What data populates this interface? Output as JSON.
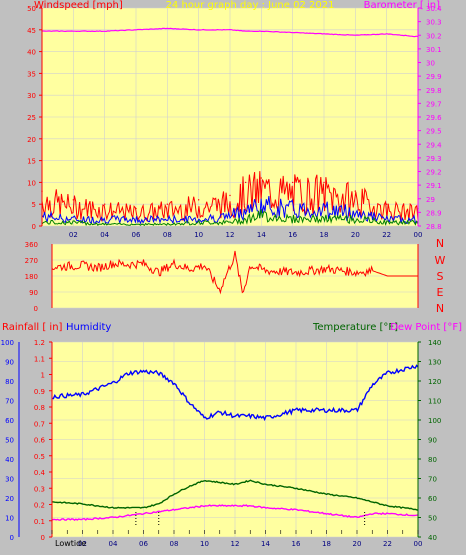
{
  "colors": {
    "background": "#c0c0c0",
    "plot_bg": "#ffffa0",
    "grid": "#d0d0d0",
    "wind": "#ff0000",
    "gust": "#0000ff",
    "avg": "#008000",
    "baro": "#ff00ff",
    "rain_axis": "#ff0000",
    "humidity": "#0000ff",
    "temperature": "#006400",
    "dewpoint": "#ff00ff",
    "title": "#ffff00",
    "direction": "#ff0000"
  },
  "chart_data": [
    {
      "type": "line",
      "id": "wind-baro",
      "title": "24 hour graph day : June 02 2021",
      "ylabel_left": "Windspeed [mph]",
      "ylabel_right": "Barometer [ in]",
      "ylim_left": [
        0,
        50
      ],
      "ylim_right": [
        28.8,
        30.4
      ],
      "yticks_left": [
        "0",
        "5",
        "10",
        "15",
        "20",
        "25",
        "30",
        "35",
        "40",
        "45",
        "50"
      ],
      "yticks_right": [
        "28.8",
        "28.9",
        "29",
        "29.1",
        "29.2",
        "29.3",
        "29.4",
        "29.5",
        "29.6",
        "29.7",
        "29.8",
        "29.9",
        "30",
        "30.1",
        "30.2",
        "30.3",
        "30.4"
      ],
      "xticks": [
        "02",
        "04",
        "06",
        "08",
        "10",
        "12",
        "14",
        "16",
        "18",
        "20",
        "22",
        "00"
      ],
      "x_hours": [
        0,
        2,
        4,
        6,
        8,
        10,
        12,
        13,
        14,
        16,
        18,
        20,
        22,
        24
      ],
      "barometer": [
        30.23,
        30.23,
        30.23,
        30.24,
        30.25,
        30.24,
        30.24,
        30.23,
        30.23,
        30.22,
        30.21,
        30.2,
        30.21,
        30.19
      ],
      "wind_peak": [
        8,
        6,
        5,
        4,
        5,
        6,
        7,
        10,
        11,
        10,
        10,
        8,
        5,
        4
      ],
      "wind_avg": [
        3,
        2,
        2,
        2,
        2,
        2,
        3,
        5,
        6,
        5,
        5,
        4,
        2,
        2
      ],
      "wind_low": [
        1,
        1,
        0.5,
        0.5,
        0.5,
        1,
        1,
        2,
        3,
        2,
        2,
        2,
        1,
        1
      ]
    },
    {
      "type": "line",
      "id": "wind-direction",
      "ylim": [
        0,
        360
      ],
      "yticks": [
        "0",
        "90",
        "180",
        "270",
        "360"
      ],
      "compass": [
        "N",
        "W",
        "S",
        "E",
        "N"
      ],
      "x_hours": [
        0,
        2,
        3,
        4,
        5,
        6,
        7,
        8,
        9,
        10,
        11,
        12,
        12.5,
        13,
        14,
        16,
        18,
        20,
        21,
        22,
        24
      ],
      "direction_deg": [
        230,
        240,
        225,
        250,
        245,
        250,
        200,
        250,
        220,
        240,
        100,
        300,
        80,
        240,
        210,
        200,
        220,
        200,
        210,
        180,
        180
      ]
    },
    {
      "type": "line",
      "id": "temp-humidity",
      "ylabel_left_rain": "Rainfall [ in]",
      "ylabel_left_humidity": "Humidity",
      "ylabel_right_temp": "Temperature [°F]",
      "ylabel_right_dew": "Dew Point [°F]",
      "ylim_rain": [
        0,
        1.2
      ],
      "ylim_humidity": [
        0,
        100
      ],
      "ylim_temp": [
        40,
        140
      ],
      "yticks_rain": [
        "0",
        "0.1",
        "0.2",
        "0.3",
        "0.4",
        "0.5",
        "0.6",
        "0.7",
        "0.8",
        "0.9",
        "1",
        "1.1",
        "1.2"
      ],
      "yticks_humidity": [
        "0",
        "10",
        "20",
        "30",
        "40",
        "50",
        "60",
        "70",
        "80",
        "90",
        "100"
      ],
      "yticks_temp": [
        "40",
        "50",
        "60",
        "70",
        "80",
        "90",
        "100",
        "110",
        "120",
        "130",
        "140"
      ],
      "xticks": [
        "02",
        "04",
        "06",
        "08",
        "10",
        "12",
        "14",
        "16",
        "18",
        "20",
        "22",
        "00"
      ],
      "x_hours": [
        0,
        2,
        4,
        5,
        6,
        7,
        8,
        9,
        10,
        11,
        12,
        13,
        14,
        16,
        18,
        20,
        21,
        22,
        24
      ],
      "humidity": [
        72,
        73,
        79,
        84,
        85,
        84,
        79,
        69,
        61,
        64,
        62,
        62,
        61,
        65,
        65,
        65,
        78,
        84,
        88
      ],
      "temperature": [
        58,
        57,
        55,
        55,
        55,
        57,
        62,
        66,
        69,
        68,
        67,
        69,
        67,
        65,
        62,
        60,
        58,
        56,
        54
      ],
      "dewpoint": [
        49,
        49,
        50,
        51,
        52,
        53,
        54,
        55,
        56,
        56,
        56,
        56,
        55,
        54,
        52,
        50,
        52,
        52,
        51
      ],
      "low_tide_label": "Lowtide",
      "tide_hours": [
        5.5,
        7.0,
        20.5
      ]
    }
  ]
}
